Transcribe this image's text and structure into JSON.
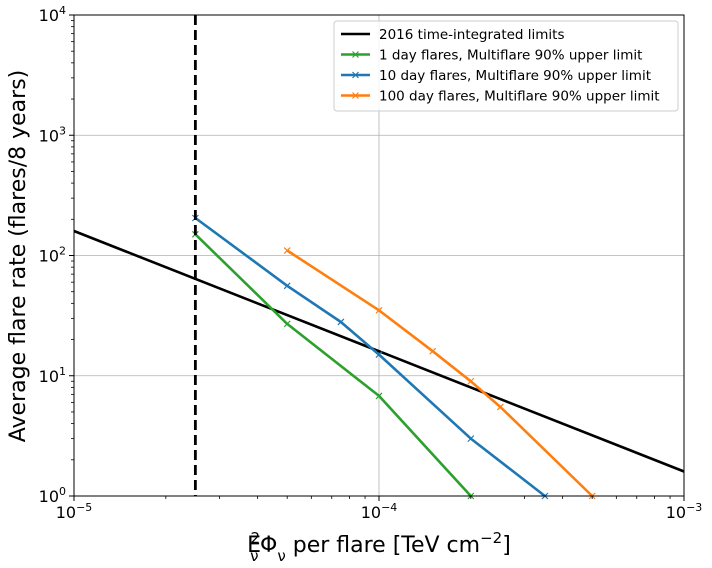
{
  "chart_data": {
    "type": "line",
    "xscale": "log",
    "yscale": "log",
    "xlim": [
      1e-05,
      0.001
    ],
    "ylim": [
      1,
      10000
    ],
    "x_ticks": [
      {
        "value": 1e-05,
        "base": "10",
        "exp": "−5"
      },
      {
        "value": 0.0001,
        "base": "10",
        "exp": "−4"
      },
      {
        "value": 0.001,
        "base": "10",
        "exp": "−3"
      }
    ],
    "y_ticks": [
      {
        "value": 1,
        "base": "10",
        "exp": "0"
      },
      {
        "value": 10,
        "base": "10",
        "exp": "1"
      },
      {
        "value": 100,
        "base": "10",
        "exp": "2"
      },
      {
        "value": 1000,
        "base": "10",
        "exp": "3"
      },
      {
        "value": 10000,
        "base": "10",
        "exp": "4"
      }
    ],
    "xlabel": {
      "e": "E",
      "nu_sub": "ν",
      "sq": "2",
      "phi": "Φ",
      "phi_sub": "ν",
      "rest": " per flare [TeV cm",
      "exp": "−2",
      "close": "]"
    },
    "ylabel": "Average flare rate (flares/8 years)",
    "grid": true,
    "legend_position": "top-right",
    "vline": {
      "x": 2.5e-05,
      "style": "dashed",
      "color": "#000000"
    },
    "series": [
      {
        "name": "2016 time-integrated limits",
        "color": "#000000",
        "marker": "none",
        "x": [
          1e-05,
          0.001
        ],
        "y": [
          160,
          1.6
        ]
      },
      {
        "name": "1 day flares, Multiflare 90% upper limit",
        "color": "#2ca02c",
        "marker": "x",
        "x": [
          2.5e-05,
          5e-05,
          0.0001,
          0.0002
        ],
        "y": [
          150,
          27,
          6.8,
          1
        ]
      },
      {
        "name": "10 day flares, Multiflare 90% upper limit",
        "color": "#1f77b4",
        "marker": "x",
        "x": [
          2.5e-05,
          5e-05,
          7.5e-05,
          0.0001,
          0.0002,
          0.00035
        ],
        "y": [
          205,
          56,
          28,
          15,
          3,
          1
        ]
      },
      {
        "name": "100 day flares, Multiflare 90% upper limit",
        "color": "#ff7f0e",
        "marker": "x",
        "x": [
          5e-05,
          0.0001,
          0.00015,
          0.0002,
          0.00025,
          0.0005
        ],
        "y": [
          110,
          35,
          16,
          9,
          5.5,
          1
        ]
      }
    ]
  }
}
